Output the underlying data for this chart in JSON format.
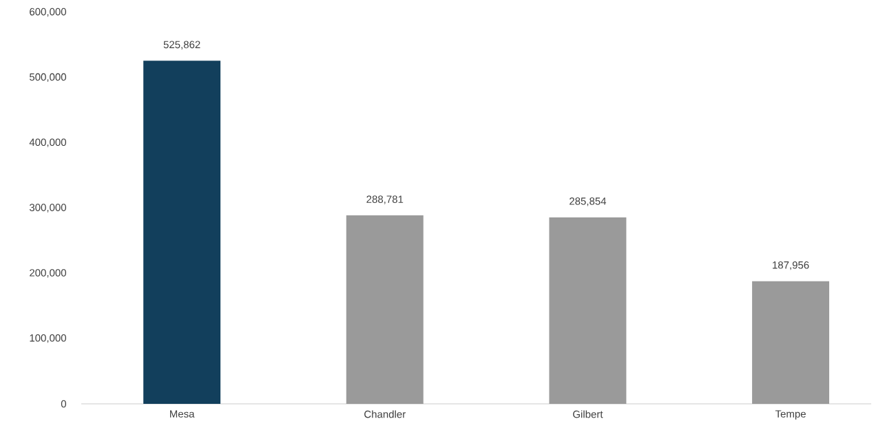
{
  "chart_data": {
    "type": "bar",
    "categories": [
      "Mesa",
      "Chandler",
      "Gilbert",
      "Tempe"
    ],
    "values": [
      525862,
      288781,
      285854,
      187956
    ],
    "value_labels": [
      "525,862",
      "288,781",
      "285,854",
      "187,956"
    ],
    "colors": [
      "#123f5c",
      "#9a9a9a",
      "#9a9a9a",
      "#9a9a9a"
    ],
    "ylim": [
      0,
      600000
    ],
    "yticks": [
      {
        "value": 0,
        "label": "0"
      },
      {
        "value": 100000,
        "label": "100,000"
      },
      {
        "value": 200000,
        "label": "200,000"
      },
      {
        "value": 300000,
        "label": "300,000"
      },
      {
        "value": 400000,
        "label": "400,000"
      },
      {
        "value": 500000,
        "label": "500,000"
      },
      {
        "value": 600000,
        "label": "600,000"
      }
    ],
    "grid": false
  }
}
